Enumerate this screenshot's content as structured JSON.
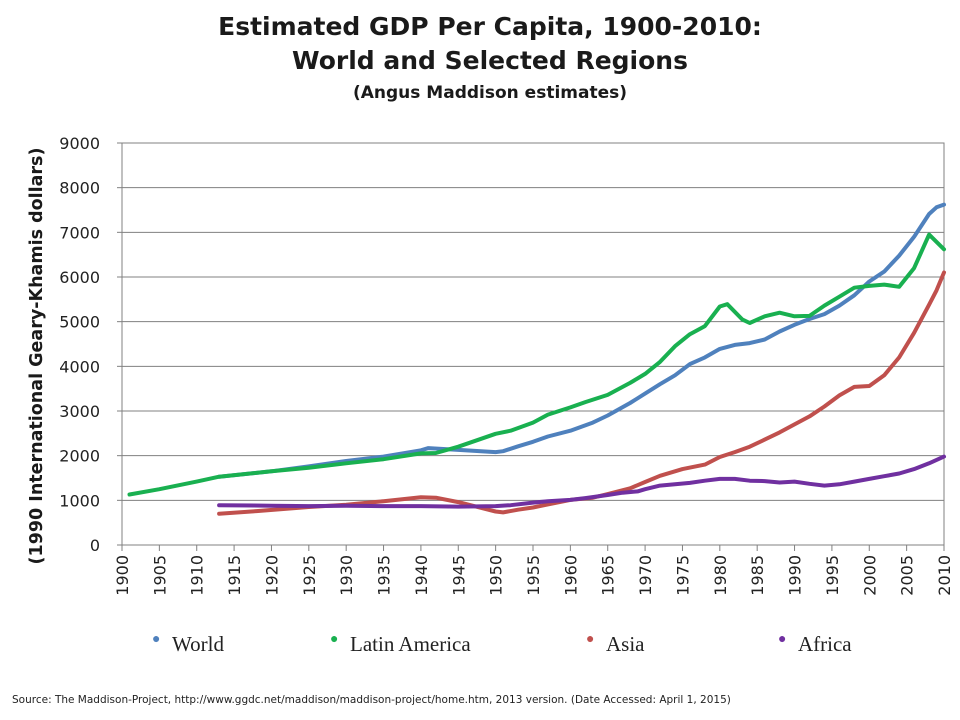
{
  "title": {
    "line1": "Estimated GDP Per Capita, 1900-2010:",
    "line2": "World and Selected Regions",
    "line3": "(Angus Maddison estimates)"
  },
  "source": "Source: The Maddison-Project, http://www.ggdc.net/maddison/maddison-project/home.htm,  2013 version. (Date Accessed: April 1, 2015)",
  "colors": {
    "World": "#4f81bd",
    "Latin America": "#19b050",
    "Asia": "#c0504d",
    "Africa": "#7030a0"
  },
  "chart_data": {
    "type": "line",
    "title": "Estimated GDP Per Capita, 1900-2010: World and Selected Regions",
    "subtitle": "(Angus Maddison estimates)",
    "xlabel": "",
    "ylabel": "(1990 International Geary-Khamis dollars)",
    "xlim": [
      1900,
      2010
    ],
    "ylim": [
      0,
      9000
    ],
    "xticks": [
      "1900",
      "1905",
      "1910",
      "1915",
      "1920",
      "1925",
      "1930",
      "1935",
      "1940",
      "1945",
      "1950",
      "1955",
      "1960",
      "1965",
      "1970",
      "1975",
      "1980",
      "1985",
      "1990",
      "1995",
      "2000",
      "2005",
      "2010"
    ],
    "yticks": [
      "0",
      "1000",
      "2000",
      "3000",
      "4000",
      "5000",
      "6000",
      "7000",
      "8000",
      "9000"
    ],
    "grid": true,
    "legend_position": "bottom",
    "series": [
      {
        "name": "World",
        "points": [
          [
            1913,
            1530
          ],
          [
            1920,
            1650
          ],
          [
            1925,
            1760
          ],
          [
            1930,
            1880
          ],
          [
            1935,
            1980
          ],
          [
            1940,
            2120
          ],
          [
            1941,
            2170
          ],
          [
            1945,
            2130
          ],
          [
            1950,
            2080
          ],
          [
            1951,
            2100
          ],
          [
            1953,
            2210
          ],
          [
            1955,
            2310
          ],
          [
            1957,
            2430
          ],
          [
            1960,
            2560
          ],
          [
            1963,
            2740
          ],
          [
            1965,
            2900
          ],
          [
            1968,
            3180
          ],
          [
            1970,
            3390
          ],
          [
            1972,
            3600
          ],
          [
            1974,
            3800
          ],
          [
            1976,
            4050
          ],
          [
            1978,
            4200
          ],
          [
            1980,
            4390
          ],
          [
            1982,
            4480
          ],
          [
            1984,
            4520
          ],
          [
            1986,
            4600
          ],
          [
            1988,
            4780
          ],
          [
            1990,
            4930
          ],
          [
            1992,
            5060
          ],
          [
            1994,
            5170
          ],
          [
            1996,
            5360
          ],
          [
            1998,
            5590
          ],
          [
            2000,
            5900
          ],
          [
            2002,
            6120
          ],
          [
            2004,
            6480
          ],
          [
            2006,
            6900
          ],
          [
            2008,
            7410
          ],
          [
            2009,
            7560
          ],
          [
            2010,
            7620
          ]
        ]
      },
      {
        "name": "Latin America",
        "points": [
          [
            1901,
            1130
          ],
          [
            1905,
            1250
          ],
          [
            1910,
            1420
          ],
          [
            1913,
            1530
          ],
          [
            1920,
            1650
          ],
          [
            1925,
            1730
          ],
          [
            1930,
            1830
          ],
          [
            1935,
            1920
          ],
          [
            1940,
            2050
          ],
          [
            1942,
            2060
          ],
          [
            1945,
            2200
          ],
          [
            1950,
            2490
          ],
          [
            1952,
            2560
          ],
          [
            1955,
            2740
          ],
          [
            1957,
            2920
          ],
          [
            1960,
            3080
          ],
          [
            1962,
            3200
          ],
          [
            1965,
            3360
          ],
          [
            1968,
            3630
          ],
          [
            1970,
            3830
          ],
          [
            1972,
            4100
          ],
          [
            1974,
            4450
          ],
          [
            1976,
            4720
          ],
          [
            1978,
            4900
          ],
          [
            1980,
            5340
          ],
          [
            1981,
            5390
          ],
          [
            1983,
            5050
          ],
          [
            1984,
            4970
          ],
          [
            1986,
            5120
          ],
          [
            1988,
            5200
          ],
          [
            1990,
            5120
          ],
          [
            1992,
            5130
          ],
          [
            1994,
            5360
          ],
          [
            1996,
            5560
          ],
          [
            1998,
            5760
          ],
          [
            2000,
            5800
          ],
          [
            2002,
            5830
          ],
          [
            2004,
            5780
          ],
          [
            2006,
            6200
          ],
          [
            2008,
            6950
          ],
          [
            2010,
            6620
          ]
        ]
      },
      {
        "name": "Asia",
        "points": [
          [
            1913,
            700
          ],
          [
            1918,
            760
          ],
          [
            1925,
            850
          ],
          [
            1930,
            900
          ],
          [
            1935,
            980
          ],
          [
            1940,
            1070
          ],
          [
            1942,
            1060
          ],
          [
            1945,
            960
          ],
          [
            1950,
            750
          ],
          [
            1951,
            730
          ],
          [
            1953,
            790
          ],
          [
            1955,
            840
          ],
          [
            1957,
            910
          ],
          [
            1960,
            1010
          ],
          [
            1963,
            1060
          ],
          [
            1965,
            1140
          ],
          [
            1968,
            1270
          ],
          [
            1970,
            1410
          ],
          [
            1972,
            1550
          ],
          [
            1975,
            1700
          ],
          [
            1978,
            1800
          ],
          [
            1980,
            1970
          ],
          [
            1982,
            2080
          ],
          [
            1984,
            2200
          ],
          [
            1986,
            2360
          ],
          [
            1988,
            2520
          ],
          [
            1990,
            2700
          ],
          [
            1992,
            2880
          ],
          [
            1994,
            3100
          ],
          [
            1996,
            3350
          ],
          [
            1998,
            3540
          ],
          [
            2000,
            3560
          ],
          [
            2002,
            3800
          ],
          [
            2004,
            4200
          ],
          [
            2006,
            4750
          ],
          [
            2008,
            5380
          ],
          [
            2009,
            5700
          ],
          [
            2010,
            6100
          ]
        ]
      },
      {
        "name": "Africa",
        "points": [
          [
            1913,
            890
          ],
          [
            1920,
            880
          ],
          [
            1925,
            870
          ],
          [
            1930,
            880
          ],
          [
            1935,
            870
          ],
          [
            1940,
            870
          ],
          [
            1945,
            860
          ],
          [
            1950,
            870
          ],
          [
            1952,
            890
          ],
          [
            1955,
            950
          ],
          [
            1957,
            980
          ],
          [
            1960,
            1010
          ],
          [
            1962,
            1050
          ],
          [
            1965,
            1120
          ],
          [
            1967,
            1170
          ],
          [
            1969,
            1200
          ],
          [
            1970,
            1250
          ],
          [
            1972,
            1330
          ],
          [
            1974,
            1360
          ],
          [
            1976,
            1390
          ],
          [
            1978,
            1440
          ],
          [
            1980,
            1480
          ],
          [
            1982,
            1480
          ],
          [
            1984,
            1440
          ],
          [
            1986,
            1430
          ],
          [
            1988,
            1400
          ],
          [
            1990,
            1420
          ],
          [
            1992,
            1370
          ],
          [
            1994,
            1330
          ],
          [
            1996,
            1360
          ],
          [
            1998,
            1420
          ],
          [
            2000,
            1480
          ],
          [
            2002,
            1540
          ],
          [
            2004,
            1600
          ],
          [
            2006,
            1700
          ],
          [
            2008,
            1830
          ],
          [
            2010,
            1980
          ]
        ]
      }
    ]
  }
}
